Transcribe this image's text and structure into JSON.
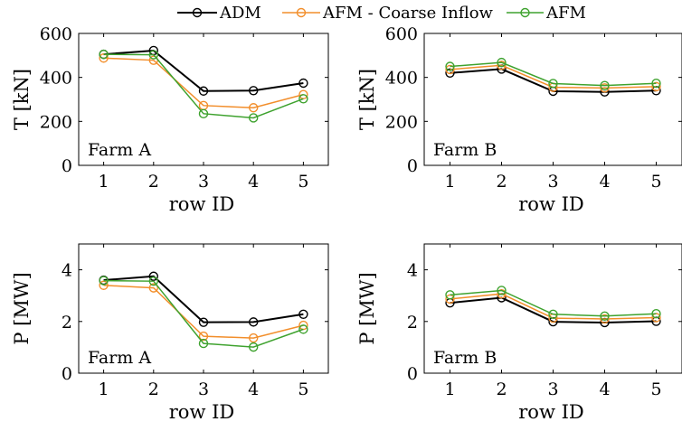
{
  "legend": {
    "entries": [
      {
        "name": "ADM",
        "color": "#000000"
      },
      {
        "name": "AFM - Coarse Inflow",
        "color": "#F28E2B"
      },
      {
        "name": "AFM",
        "color": "#3EA22E"
      }
    ]
  },
  "chart_data": [
    {
      "type": "line",
      "panel": "top-left",
      "annotation": "Farm A",
      "xlabel": "row ID",
      "ylabel": "T [kN]",
      "x": [
        1,
        2,
        3,
        4,
        5
      ],
      "xticks": [
        "1",
        "2",
        "3",
        "4",
        "5"
      ],
      "xlim": [
        0.5,
        5.5
      ],
      "ylim": [
        0,
        600
      ],
      "yticks": [
        "0",
        "200",
        "400",
        "600"
      ],
      "ytick_values": [
        0,
        200,
        400,
        600
      ],
      "grid": false,
      "series": [
        {
          "name": "ADM",
          "color": "#000000",
          "values": [
            505,
            522,
            338,
            340,
            374
          ]
        },
        {
          "name": "AFM - Coarse Inflow",
          "color": "#F28E2B",
          "values": [
            488,
            478,
            272,
            262,
            322
          ]
        },
        {
          "name": "AFM",
          "color": "#3EA22E",
          "values": [
            505,
            503,
            235,
            216,
            303
          ]
        }
      ]
    },
    {
      "type": "line",
      "panel": "top-right",
      "annotation": "Farm B",
      "xlabel": "row ID",
      "ylabel": "T [kN]",
      "x": [
        1,
        2,
        3,
        4,
        5
      ],
      "xticks": [
        "1",
        "2",
        "3",
        "4",
        "5"
      ],
      "xlim": [
        0.5,
        5.5
      ],
      "ylim": [
        0,
        600
      ],
      "yticks": [
        "0",
        "200",
        "400",
        "600"
      ],
      "ytick_values": [
        0,
        200,
        400,
        600
      ],
      "grid": false,
      "series": [
        {
          "name": "ADM",
          "color": "#000000",
          "values": [
            420,
            438,
            337,
            334,
            340
          ]
        },
        {
          "name": "AFM - Coarse Inflow",
          "color": "#F28E2B",
          "values": [
            436,
            455,
            355,
            352,
            358
          ]
        },
        {
          "name": "AFM",
          "color": "#3EA22E",
          "values": [
            450,
            468,
            372,
            363,
            373
          ]
        }
      ]
    },
    {
      "type": "line",
      "panel": "bottom-left",
      "annotation": "Farm A",
      "xlabel": "row ID",
      "ylabel": "P [MW]",
      "x": [
        1,
        2,
        3,
        4,
        5
      ],
      "xticks": [
        "1",
        "2",
        "3",
        "4",
        "5"
      ],
      "xlim": [
        0.5,
        5.5
      ],
      "ylim": [
        0,
        5
      ],
      "yticks": [
        "0",
        "2",
        "4"
      ],
      "ytick_values": [
        0,
        2,
        4
      ],
      "grid": false,
      "series": [
        {
          "name": "ADM",
          "color": "#000000",
          "values": [
            3.6,
            3.75,
            1.97,
            1.98,
            2.28
          ]
        },
        {
          "name": "AFM - Coarse Inflow",
          "color": "#F28E2B",
          "values": [
            3.4,
            3.3,
            1.43,
            1.36,
            1.85
          ]
        },
        {
          "name": "AFM",
          "color": "#3EA22E",
          "values": [
            3.58,
            3.56,
            1.15,
            1.01,
            1.7
          ]
        }
      ]
    },
    {
      "type": "line",
      "panel": "bottom-right",
      "annotation": "Farm B",
      "xlabel": "row ID",
      "ylabel": "P [MW]",
      "x": [
        1,
        2,
        3,
        4,
        5
      ],
      "xticks": [
        "1",
        "2",
        "3",
        "4",
        "5"
      ],
      "xlim": [
        0.5,
        5.5
      ],
      "ylim": [
        0,
        5
      ],
      "yticks": [
        "0",
        "2",
        "4"
      ],
      "ytick_values": [
        0,
        2,
        4
      ],
      "grid": false,
      "series": [
        {
          "name": "ADM",
          "color": "#000000",
          "values": [
            2.72,
            2.92,
            1.99,
            1.96,
            2.01
          ]
        },
        {
          "name": "AFM - Coarse Inflow",
          "color": "#F28E2B",
          "values": [
            2.87,
            3.07,
            2.13,
            2.1,
            2.15
          ]
        },
        {
          "name": "AFM",
          "color": "#3EA22E",
          "values": [
            3.03,
            3.2,
            2.28,
            2.21,
            2.3
          ]
        }
      ]
    }
  ]
}
